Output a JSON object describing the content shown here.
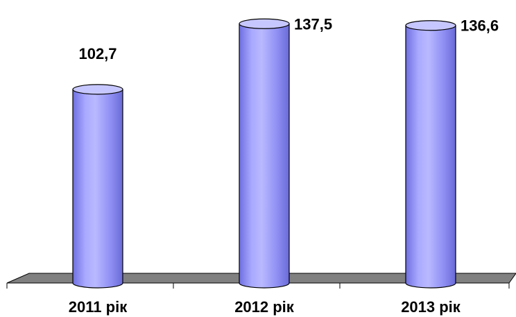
{
  "chart_data": {
    "type": "bar",
    "categories": [
      "2011 рік",
      "2012 рік",
      "2013 рік"
    ],
    "values": [
      102.7,
      137.5,
      136.6
    ],
    "value_labels": [
      "102,7",
      "137,5",
      "136,6"
    ],
    "title": "",
    "xlabel": "",
    "ylabel": "",
    "ylim": [
      0,
      140
    ],
    "grid": false,
    "legend": "none",
    "bar_shape": "cylinder",
    "colors": {
      "bar": "#9999ff",
      "bar_dark": "#5a5ad6",
      "bar_light": "#c7c7ff",
      "floor": "#808080",
      "outline": "#000000"
    }
  }
}
